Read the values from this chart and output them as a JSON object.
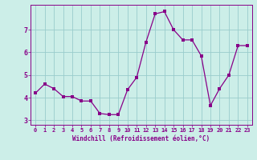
{
  "x": [
    0,
    1,
    2,
    3,
    4,
    5,
    6,
    7,
    8,
    9,
    10,
    11,
    12,
    13,
    14,
    15,
    16,
    17,
    18,
    19,
    20,
    21,
    22,
    23
  ],
  "y": [
    4.2,
    4.6,
    4.4,
    4.05,
    4.05,
    3.85,
    3.85,
    3.3,
    3.25,
    3.25,
    4.35,
    4.9,
    6.45,
    7.7,
    7.8,
    7.0,
    6.55,
    6.55,
    5.85,
    3.65,
    4.4,
    5.0,
    6.3,
    6.3
  ],
  "line_color": "#880088",
  "marker": "s",
  "marker_size": 2.5,
  "background_color": "#cceee8",
  "grid_color": "#99cccc",
  "xlabel": "Windchill (Refroidissement éolien,°C)",
  "xlabel_color": "#880088",
  "tick_color": "#880088",
  "spine_color": "#880088",
  "ylim": [
    2.8,
    8.1
  ],
  "xlim": [
    -0.5,
    23.5
  ],
  "yticks": [
    3,
    4,
    5,
    6,
    7
  ],
  "xticks": [
    0,
    1,
    2,
    3,
    4,
    5,
    6,
    7,
    8,
    9,
    10,
    11,
    12,
    13,
    14,
    15,
    16,
    17,
    18,
    19,
    20,
    21,
    22,
    23
  ]
}
